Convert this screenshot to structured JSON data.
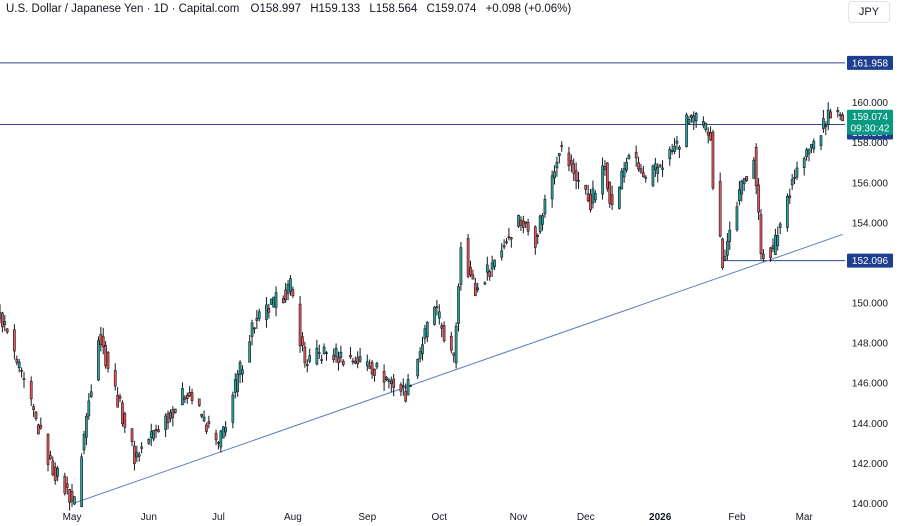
{
  "header": {
    "title": "U.S. Dollar / Japanese Yen · 1D · Capital.com",
    "open": "O158.997",
    "high": "H159.133",
    "low": "L158.564",
    "close": "C159.074",
    "change": "+0.098 (+0.06%)",
    "currency_button": "JPY"
  },
  "colors": {
    "up": "#26a69a",
    "down": "#ef5350",
    "wick": "#131722",
    "line": "#2a4a8c",
    "trend": "#5b7cc4",
    "tag": "#1e3f8f",
    "price_tag": "#089981"
  },
  "chart_data": {
    "type": "candlestick",
    "title": "U.S. Dollar / Japanese Yen · 1D · Capital.com",
    "xlabel": "",
    "ylabel": "",
    "ylim": [
      139.9,
      163.8
    ],
    "y_ticks": [
      140,
      142,
      144,
      146,
      148,
      150,
      152,
      154,
      156,
      158,
      160
    ],
    "y_tick_labels": [
      "140.000",
      "142.000",
      "144.000",
      "146.000",
      "148.000",
      "150.000",
      "152.000",
      "154.000",
      "156.000",
      "158.000",
      "160.000"
    ],
    "x_tick_labels": [
      {
        "label": "May",
        "date": "2025-05-01"
      },
      {
        "label": "Jun",
        "date": "2025-06-02"
      },
      {
        "label": "Jul",
        "date": "2025-07-01"
      },
      {
        "label": "Aug",
        "date": "2025-08-01"
      },
      {
        "label": "Sep",
        "date": "2025-09-01"
      },
      {
        "label": "Oct",
        "date": "2025-10-01"
      },
      {
        "label": "Nov",
        "date": "2025-11-03"
      },
      {
        "label": "Dec",
        "date": "2025-12-01"
      },
      {
        "label": "2026",
        "date": "2026-01-01",
        "bold": true
      },
      {
        "label": "Feb",
        "date": "2026-02-02"
      },
      {
        "label": "Mar",
        "date": "2026-03-02"
      }
    ],
    "x_range": [
      "2025-04-01",
      "2026-03-19"
    ],
    "grid": false,
    "horizontal_levels": [
      {
        "value": 161.958,
        "label": "161.958",
        "extent": "full"
      },
      {
        "value": 158.884,
        "label": "158.884",
        "extent": "full"
      },
      {
        "value": 152.096,
        "label": "152.096",
        "extent": "from-2026-01-27"
      }
    ],
    "trendline": {
      "start": {
        "date": "2025-05-02",
        "value": 140.0
      },
      "end": {
        "date": "2026-03-18",
        "value": 153.4
      }
    },
    "last_price": {
      "value": 159.074,
      "label": "159.074",
      "countdown": "09:30:42"
    },
    "key_points": [
      {
        "date": "2025-04-01",
        "value": 149.5
      },
      {
        "date": "2025-04-22",
        "value": 141.9
      },
      {
        "date": "2025-05-02",
        "value": 140.0
      },
      {
        "date": "2025-05-12",
        "value": 148.5
      },
      {
        "date": "2025-05-27",
        "value": 142.3
      },
      {
        "date": "2025-06-18",
        "value": 145.6
      },
      {
        "date": "2025-07-01",
        "value": 142.8
      },
      {
        "date": "2025-07-15",
        "value": 148.8
      },
      {
        "date": "2025-07-31",
        "value": 150.8
      },
      {
        "date": "2025-08-06",
        "value": 147.0
      },
      {
        "date": "2025-08-14",
        "value": 147.5
      },
      {
        "date": "2025-09-01",
        "value": 147.0
      },
      {
        "date": "2025-09-17",
        "value": 145.5
      },
      {
        "date": "2025-09-29",
        "value": 149.8
      },
      {
        "date": "2025-10-07",
        "value": 147.0
      },
      {
        "date": "2025-10-10",
        "value": 153.0
      },
      {
        "date": "2025-10-16",
        "value": 150.5
      },
      {
        "date": "2025-11-03",
        "value": 154.2
      },
      {
        "date": "2025-11-10",
        "value": 153.2
      },
      {
        "date": "2025-11-20",
        "value": 157.8
      },
      {
        "date": "2025-12-03",
        "value": 155.0
      },
      {
        "date": "2025-12-09",
        "value": 156.8
      },
      {
        "date": "2025-12-12",
        "value": 154.7
      },
      {
        "date": "2025-12-19",
        "value": 157.5
      },
      {
        "date": "2025-12-26",
        "value": 156.0
      },
      {
        "date": "2026-01-09",
        "value": 158.0
      },
      {
        "date": "2026-01-13",
        "value": 159.3
      },
      {
        "date": "2026-01-22",
        "value": 158.5
      },
      {
        "date": "2026-01-23",
        "value": 156.0
      },
      {
        "date": "2026-01-27",
        "value": 152.1
      },
      {
        "date": "2026-02-02",
        "value": 155.0
      },
      {
        "date": "2026-02-09",
        "value": 157.5
      },
      {
        "date": "2026-02-12",
        "value": 152.5
      },
      {
        "date": "2026-02-17",
        "value": 152.6
      },
      {
        "date": "2026-02-25",
        "value": 156.2
      },
      {
        "date": "2026-03-05",
        "value": 157.8
      },
      {
        "date": "2026-03-10",
        "value": 158.8
      },
      {
        "date": "2026-03-13",
        "value": 159.6
      },
      {
        "date": "2026-03-18",
        "value": 159.07
      }
    ]
  }
}
